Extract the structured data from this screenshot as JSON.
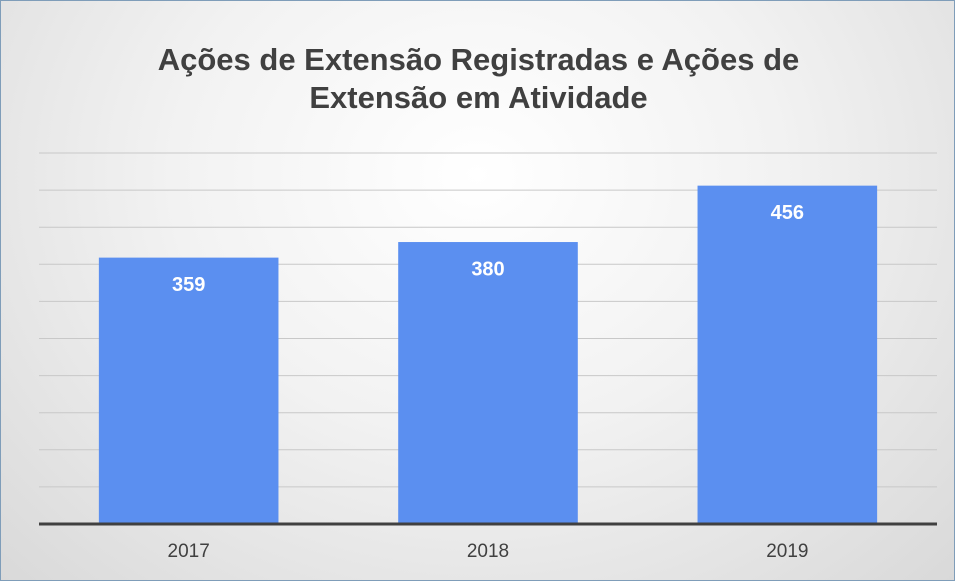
{
  "chart_data": {
    "type": "bar",
    "title": "Ações de Extensão Registradas e Ações de Extensão em Atividade",
    "categories": [
      "2017",
      "2018",
      "2019"
    ],
    "values": [
      359,
      380,
      456
    ],
    "color": "#5b8ff0",
    "ylim": [
      0,
      500
    ],
    "yticks": [
      0,
      50,
      100,
      150,
      200,
      250,
      300,
      350,
      400,
      450,
      500
    ],
    "grid": true
  }
}
